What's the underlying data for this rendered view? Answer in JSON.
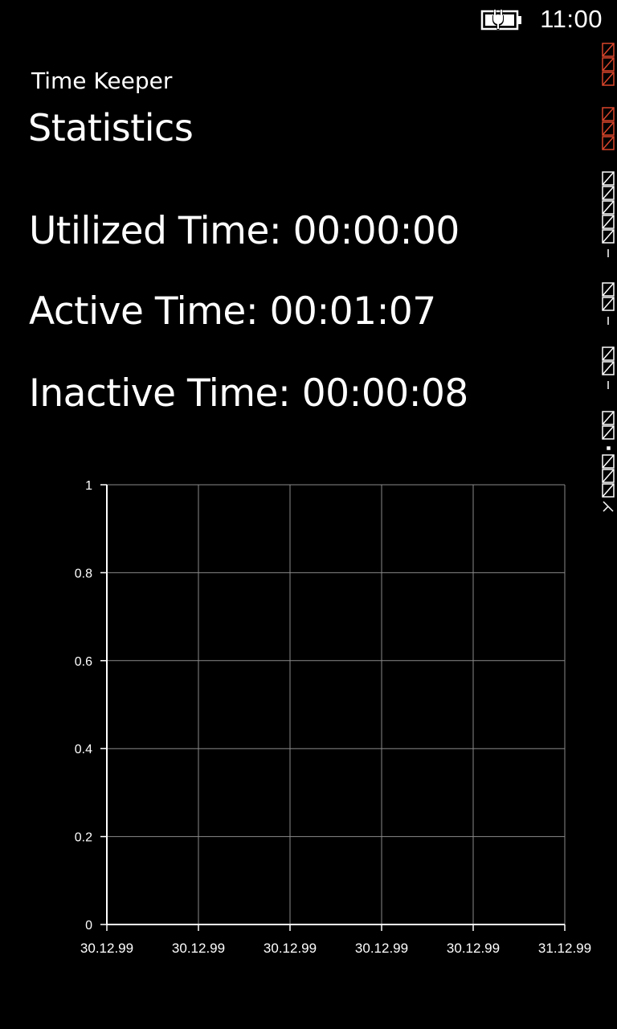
{
  "status_bar": {
    "time": "11:00",
    "battery_icon": "battery-charging-icon"
  },
  "header": {
    "app_title": "Time Keeper",
    "page_title": "Statistics"
  },
  "stats": {
    "utilized": "Utilized Time: 00:00:00",
    "active": "Active Time: 00:01:07",
    "inactive": "Inactive Time: 00:00:08"
  },
  "chart_data": {
    "type": "line",
    "title": "",
    "xlabel": "",
    "ylabel": "",
    "ylim": [
      0,
      1
    ],
    "y_ticks": [
      "0",
      "0.2",
      "0.4",
      "0.6",
      "0.8",
      "1"
    ],
    "x_ticks": [
      "30.12.99",
      "30.12.99",
      "30.12.99",
      "30.12.99",
      "30.12.99",
      "31.12.99"
    ],
    "grid": true,
    "series": []
  },
  "colors": {
    "background": "#000000",
    "foreground": "#ffffff",
    "gridline": "#8a8a8a",
    "debug_marker": "#d9452b"
  }
}
